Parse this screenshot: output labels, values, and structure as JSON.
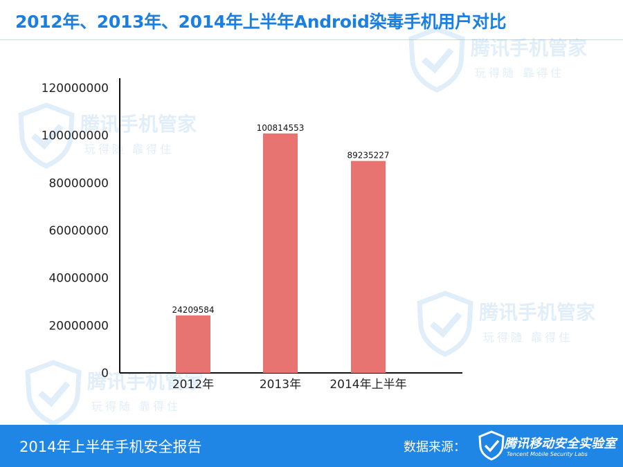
{
  "title": "2012年、2013年、2014年上半年Android染毒手机用户对比",
  "watermark": {
    "name": "腾讯手机管家",
    "slogan": "玩得随 靠得住"
  },
  "footer": {
    "report": "2014年上半年手机安全报告",
    "source_label": "数据来源：",
    "logo_name": "腾讯移动安全实验室",
    "logo_sub": "Tencent Mobile Security Labs"
  },
  "colors": {
    "brand": "#1f86e6",
    "title": "#1a7fe0",
    "bar": "#e87472"
  },
  "chart_data": {
    "type": "bar",
    "title": "2012年、2013年、2014年上半年Android染毒手机用户对比",
    "categories": [
      "2012年",
      "2013年",
      "2014年上半年"
    ],
    "values": [
      24209584,
      100814553,
      89235227
    ],
    "data_labels": [
      "24209584",
      "100814553",
      "89235227"
    ],
    "yticks": [
      0,
      20000000,
      40000000,
      60000000,
      80000000,
      100000000,
      120000000
    ],
    "ytick_labels": [
      "0",
      "20000000",
      "40000000",
      "60000000",
      "80000000",
      "100000000",
      "120000000"
    ],
    "ylim": [
      0,
      120000000
    ],
    "xlabel": "",
    "ylabel": "",
    "grid": false,
    "legend": "none"
  }
}
